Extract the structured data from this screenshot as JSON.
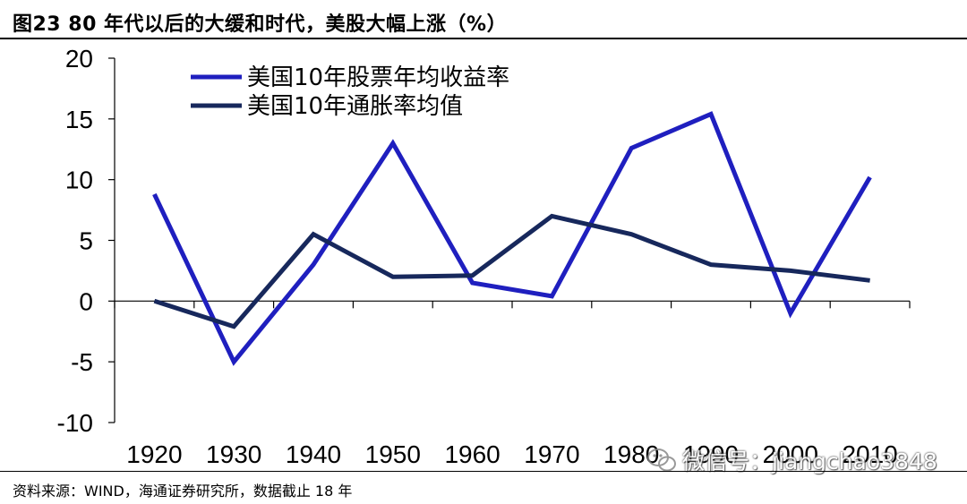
{
  "header": {
    "title": "图23 80 年代以后的大缓和时代，美股大幅上涨（%）"
  },
  "footer": {
    "source": "资料来源：WIND，海通证券研究所，数据截止 18 年"
  },
  "watermark": {
    "text": "微信号：jiangchao3848",
    "icon": "wechat-icon"
  },
  "chart_data": {
    "type": "line",
    "title": "图23 80 年代以后的大缓和时代，美股大幅上涨（%）",
    "categories": [
      "1920",
      "1930",
      "1940",
      "1950",
      "1960",
      "1970",
      "1980",
      "1990",
      "2000",
      "2010"
    ],
    "series": [
      {
        "name": "美国10年股票年均收益率",
        "color": "#1f1fbf",
        "values": [
          8.8,
          -5.0,
          3.0,
          13.0,
          1.5,
          0.4,
          12.6,
          15.4,
          -1.0,
          10.2
        ]
      },
      {
        "name": "美国10年通胀率均值",
        "color": "#17285c",
        "values": [
          0.0,
          -2.1,
          5.5,
          2.0,
          2.1,
          7.0,
          5.5,
          3.0,
          2.5,
          1.7
        ]
      }
    ],
    "xlabel": "",
    "ylabel": "",
    "ylim": [
      -10,
      20
    ],
    "yticks": [
      -10,
      -5,
      0,
      5,
      10,
      15,
      20
    ],
    "grid": false,
    "legend": "top-left"
  }
}
